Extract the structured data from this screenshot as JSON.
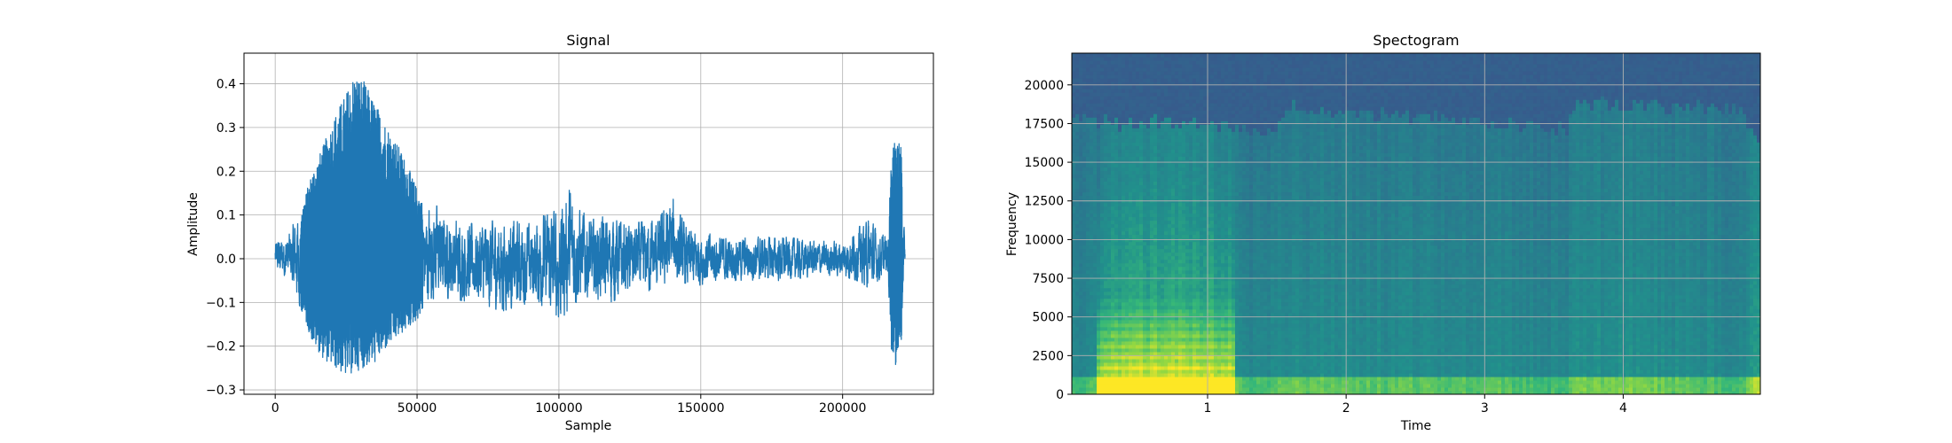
{
  "chart_data": [
    {
      "type": "line",
      "title": "Signal",
      "xlabel": "Sample",
      "ylabel": "Amplitude",
      "xlim": [
        -11000,
        232000
      ],
      "ylim": [
        -0.31,
        0.47
      ],
      "grid": true,
      "color": "#1f77b4",
      "xticks": [
        0,
        50000,
        100000,
        150000,
        200000
      ],
      "xtick_labels": [
        "0",
        "50000",
        "100000",
        "150000",
        "200000"
      ],
      "yticks": [
        -0.3,
        -0.2,
        -0.1,
        0.0,
        0.1,
        0.2,
        0.3,
        0.4
      ],
      "ytick_labels": [
        "−0.3",
        "−0.2",
        "−0.1",
        "0.0",
        "0.1",
        "0.2",
        "0.3",
        "0.4"
      ],
      "envelope": {
        "sample": [
          0,
          5000,
          10000,
          13000,
          17000,
          21000,
          25000,
          28000,
          31000,
          35000,
          40000,
          45000,
          50000,
          53000,
          56000,
          60000,
          70000,
          80000,
          90000,
          95000,
          100000,
          104000,
          108000,
          112000,
          118000,
          125000,
          135000,
          140000,
          145000,
          150000,
          160000,
          170000,
          180000,
          190000,
          200000,
          205000,
          210000,
          213000,
          216000,
          217500,
          219000,
          220500,
          222000
        ],
        "upper": [
          0.04,
          0.06,
          0.13,
          0.2,
          0.26,
          0.33,
          0.38,
          0.43,
          0.41,
          0.36,
          0.3,
          0.24,
          0.16,
          0.11,
          0.13,
          0.09,
          0.08,
          0.09,
          0.08,
          0.1,
          0.12,
          0.16,
          0.11,
          0.09,
          0.1,
          0.08,
          0.09,
          0.14,
          0.07,
          0.06,
          0.05,
          0.05,
          0.05,
          0.04,
          0.04,
          0.07,
          0.09,
          0.05,
          0.06,
          0.27,
          0.27,
          0.27,
          0.02
        ],
        "lower": [
          -0.03,
          -0.05,
          -0.13,
          -0.19,
          -0.23,
          -0.25,
          -0.27,
          -0.26,
          -0.25,
          -0.24,
          -0.2,
          -0.17,
          -0.14,
          -0.11,
          -0.09,
          -0.09,
          -0.1,
          -0.12,
          -0.1,
          -0.11,
          -0.15,
          -0.11,
          -0.1,
          -0.09,
          -0.1,
          -0.08,
          -0.07,
          -0.06,
          -0.07,
          -0.06,
          -0.05,
          -0.05,
          -0.05,
          -0.04,
          -0.04,
          -0.05,
          -0.07,
          -0.05,
          -0.04,
          -0.25,
          -0.24,
          -0.22,
          -0.01
        ]
      }
    },
    {
      "type": "heatmap",
      "title": "Spectogram",
      "xlabel": "Time",
      "ylabel": "Frequency",
      "xlim": [
        0.02,
        4.99
      ],
      "ylim": [
        0,
        22050
      ],
      "grid": true,
      "colormap": "viridis",
      "xticks": [
        1,
        2,
        3,
        4
      ],
      "xtick_labels": [
        "1",
        "2",
        "3",
        "4"
      ],
      "yticks": [
        0,
        2500,
        5000,
        7500,
        10000,
        12500,
        15000,
        17500,
        20000
      ],
      "ytick_labels": [
        "0",
        "2500",
        "5000",
        "7500",
        "10000",
        "12500",
        "15000",
        "17500",
        "20000"
      ]
    }
  ]
}
